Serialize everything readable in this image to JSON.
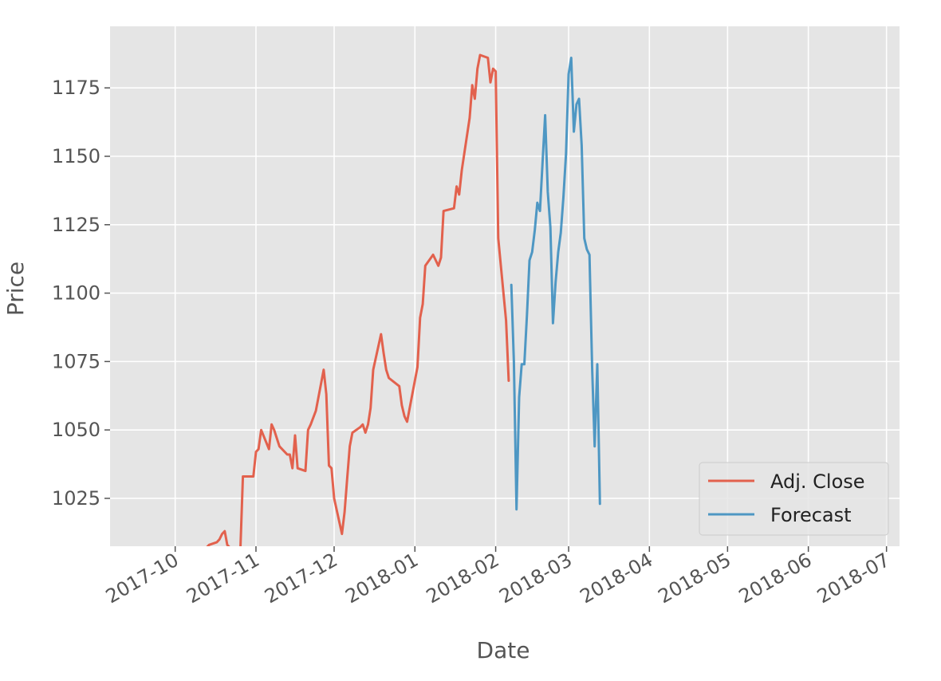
{
  "chart_data": {
    "type": "line",
    "title": "",
    "xlabel": "Date",
    "ylabel": "Price",
    "x_axis_type": "date",
    "xlim": [
      "2017-09-06",
      "2018-07-06"
    ],
    "ylim": [
      1007.5,
      1197.5
    ],
    "xticks": [
      "2017-10",
      "2017-11",
      "2017-12",
      "2018-01",
      "2018-02",
      "2018-03",
      "2018-04",
      "2018-05",
      "2018-06",
      "2018-07"
    ],
    "yticks": [
      1025,
      1050,
      1075,
      1100,
      1125,
      1150,
      1175
    ],
    "grid": true,
    "legend_position": "bottom-right",
    "series": [
      {
        "name": "Adj. Close",
        "color": "#E24A33",
        "points": [
          [
            "2017-10-13",
            1007
          ],
          [
            "2017-10-14",
            1008
          ],
          [
            "2017-10-17",
            1009
          ],
          [
            "2017-10-18",
            1010
          ],
          [
            "2017-10-19",
            1012
          ],
          [
            "2017-10-20",
            1013
          ],
          [
            "2017-10-21",
            1008
          ],
          [
            "2017-10-25",
            1004
          ],
          [
            "2017-10-26",
            1006
          ],
          [
            "2017-10-27",
            1033
          ],
          [
            "2017-10-31",
            1033
          ],
          [
            "2017-11-01",
            1042
          ],
          [
            "2017-11-02",
            1043
          ],
          [
            "2017-11-03",
            1050
          ],
          [
            "2017-11-06",
            1043
          ],
          [
            "2017-11-07",
            1052
          ],
          [
            "2017-11-08",
            1050
          ],
          [
            "2017-11-09",
            1047
          ],
          [
            "2017-11-10",
            1044
          ],
          [
            "2017-11-13",
            1041
          ],
          [
            "2017-11-14",
            1041
          ],
          [
            "2017-11-15",
            1036
          ],
          [
            "2017-11-16",
            1048
          ],
          [
            "2017-11-17",
            1036
          ],
          [
            "2017-11-20",
            1035
          ],
          [
            "2017-11-21",
            1050
          ],
          [
            "2017-11-22",
            1052
          ],
          [
            "2017-11-24",
            1057
          ],
          [
            "2017-11-27",
            1072
          ],
          [
            "2017-11-28",
            1063
          ],
          [
            "2017-11-29",
            1037
          ],
          [
            "2017-11-30",
            1036
          ],
          [
            "2017-12-01",
            1025
          ],
          [
            "2017-12-04",
            1012
          ],
          [
            "2017-12-05",
            1020
          ],
          [
            "2017-12-06",
            1032
          ],
          [
            "2017-12-07",
            1044
          ],
          [
            "2017-12-08",
            1049
          ],
          [
            "2017-12-11",
            1051
          ],
          [
            "2017-12-12",
            1052
          ],
          [
            "2017-12-13",
            1049
          ],
          [
            "2017-12-14",
            1052
          ],
          [
            "2017-12-15",
            1058
          ],
          [
            "2017-12-16",
            1072
          ],
          [
            "2017-12-19",
            1085
          ],
          [
            "2017-12-20",
            1078
          ],
          [
            "2017-12-21",
            1072
          ],
          [
            "2017-12-22",
            1069
          ],
          [
            "2017-12-26",
            1066
          ],
          [
            "2017-12-27",
            1059
          ],
          [
            "2017-12-28",
            1055
          ],
          [
            "2017-12-29",
            1053
          ],
          [
            "2018-01-02",
            1073
          ],
          [
            "2018-01-03",
            1091
          ],
          [
            "2018-01-04",
            1096
          ],
          [
            "2018-01-05",
            1110
          ],
          [
            "2018-01-08",
            1114
          ],
          [
            "2018-01-09",
            1112
          ],
          [
            "2018-01-10",
            1110
          ],
          [
            "2018-01-11",
            1113
          ],
          [
            "2018-01-12",
            1130
          ],
          [
            "2018-01-16",
            1131
          ],
          [
            "2018-01-17",
            1139
          ],
          [
            "2018-01-18",
            1136
          ],
          [
            "2018-01-19",
            1145
          ],
          [
            "2018-01-22",
            1164
          ],
          [
            "2018-01-23",
            1176
          ],
          [
            "2018-01-24",
            1171
          ],
          [
            "2018-01-25",
            1182
          ],
          [
            "2018-01-26",
            1187
          ],
          [
            "2018-01-29",
            1186
          ],
          [
            "2018-01-30",
            1177
          ],
          [
            "2018-01-31",
            1182
          ],
          [
            "2018-02-01",
            1181
          ],
          [
            "2018-02-02",
            1120
          ],
          [
            "2018-02-05",
            1090
          ],
          [
            "2018-02-06",
            1068
          ]
        ]
      },
      {
        "name": "Forecast",
        "color": "#348ABD",
        "points": [
          [
            "2018-02-07",
            1103
          ],
          [
            "2018-02-08",
            1075
          ],
          [
            "2018-02-09",
            1021
          ],
          [
            "2018-02-10",
            1062
          ],
          [
            "2018-02-11",
            1074
          ],
          [
            "2018-02-12",
            1074
          ],
          [
            "2018-02-13",
            1092
          ],
          [
            "2018-02-14",
            1112
          ],
          [
            "2018-02-15",
            1115
          ],
          [
            "2018-02-16",
            1123
          ],
          [
            "2018-02-17",
            1133
          ],
          [
            "2018-02-18",
            1130
          ],
          [
            "2018-02-19",
            1148
          ],
          [
            "2018-02-20",
            1165
          ],
          [
            "2018-02-21",
            1137
          ],
          [
            "2018-02-22",
            1124
          ],
          [
            "2018-02-23",
            1089
          ],
          [
            "2018-02-24",
            1104
          ],
          [
            "2018-02-25",
            1115
          ],
          [
            "2018-02-26",
            1122
          ],
          [
            "2018-02-27",
            1135
          ],
          [
            "2018-02-28",
            1151
          ],
          [
            "2018-03-01",
            1180
          ],
          [
            "2018-03-02",
            1186
          ],
          [
            "2018-03-03",
            1159
          ],
          [
            "2018-03-04",
            1169
          ],
          [
            "2018-03-05",
            1171
          ],
          [
            "2018-03-06",
            1154
          ],
          [
            "2018-03-07",
            1120
          ],
          [
            "2018-03-08",
            1116
          ],
          [
            "2018-03-09",
            1114
          ],
          [
            "2018-03-10",
            1073
          ],
          [
            "2018-03-11",
            1044
          ],
          [
            "2018-03-12",
            1074
          ],
          [
            "2018-03-13",
            1023
          ]
        ]
      }
    ]
  }
}
